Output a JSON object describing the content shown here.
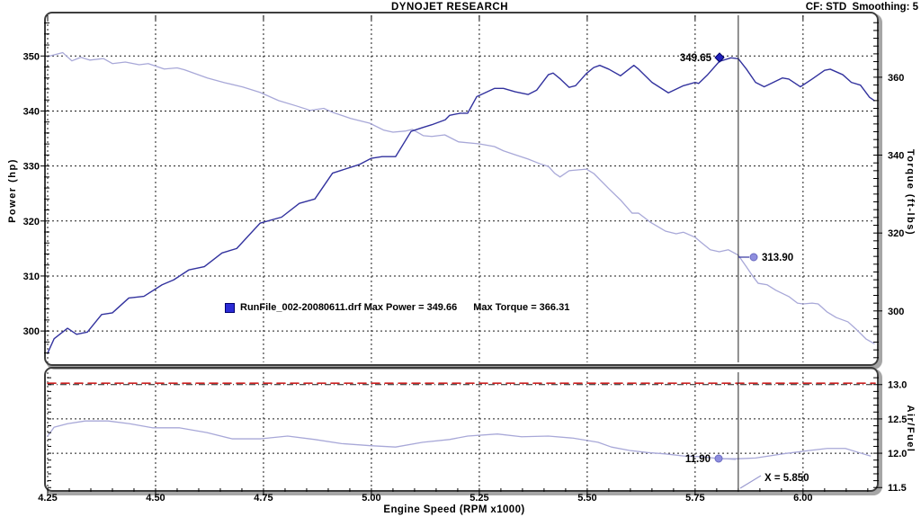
{
  "header": {
    "title": "DYNOJET RESEARCH",
    "settings": "CF: STD  Smoothing: 5"
  },
  "colors": {
    "power": "#32329e",
    "torque": "#a8a8d8",
    "afr": "#a8a8d8",
    "target": "#cc2222",
    "grid": "#1a1a1a",
    "cursor": "#222222",
    "marker_light": "#8e8ede",
    "marker_light_edge": "#6a6ac0",
    "marker_dark": "#2020bb",
    "legend_square": "#2b2bd6",
    "leader_light": "#9a9ad0"
  },
  "legend": {
    "file_power_label": "RunFile_002-20080611.drf Max Power = 349.66",
    "max_torque_label": "Max Torque = 366.31"
  },
  "cursor": {
    "x": 5.85,
    "label": "X = 5.850"
  },
  "axes_titles": {
    "power": "Power (hp)",
    "torque": "Torque (ft-lbs)",
    "afr": "Air/Fuel",
    "x": "Engine Speed (RPM x1000)"
  },
  "annotations": [
    {
      "id": "power-readout",
      "label": "349.65",
      "marker": "diamond",
      "px": [
        800,
        64
      ],
      "label_side": "left",
      "value": 349.65
    },
    {
      "id": "torque-readout",
      "label": "313.90",
      "marker": "circle",
      "px": [
        838,
        286
      ],
      "label_side": "right",
      "value": 313.9,
      "leader": [
        [
          821,
          286
        ],
        [
          833,
          286
        ]
      ],
      "leader_color_key": "power"
    },
    {
      "id": "afr-readout",
      "label": "11.90",
      "marker": "circle",
      "px": [
        799,
        510
      ],
      "label_side": "left",
      "value": 11.9,
      "leader": [
        [
          803,
          510
        ],
        [
          818,
          511
        ]
      ],
      "leader_color_key": "afr"
    },
    {
      "id": "cursor-x-label",
      "label": "X = 5.850",
      "marker": "none",
      "px": [
        850,
        535
      ],
      "label_side": "right",
      "leader": [
        [
          846,
          529
        ],
        [
          823,
          543
        ]
      ],
      "leader_color_key": "leader_light"
    }
  ],
  "chart_data": [
    {
      "type": "line",
      "panel": "main",
      "xlim": [
        4.25,
        6.167
      ],
      "xlabel": "Engine Speed (RPM x1000)",
      "x_ticks": [
        {
          "v": 4.25,
          "label": "4.25"
        },
        {
          "v": 4.5,
          "label": "4.50"
        },
        {
          "v": 4.75,
          "label": "4.75"
        },
        {
          "v": 5.0,
          "label": "5.00"
        },
        {
          "v": 5.25,
          "label": "5.25"
        },
        {
          "v": 5.5,
          "label": "5.50"
        },
        {
          "v": 5.75,
          "label": "5.75"
        },
        {
          "v": 6.0,
          "label": "6.00"
        }
      ],
      "x_minor_step": 0.05,
      "axes": {
        "power": {
          "label": "Power (hp)",
          "lim": [
            294.3,
            357.4
          ],
          "minor_step": 2,
          "minor_range": [
            296,
            356
          ],
          "ticks": [
            {
              "v": 300,
              "label": "300"
            },
            {
              "v": 310,
              "label": "310"
            },
            {
              "v": 320,
              "label": "320"
            },
            {
              "v": 330,
              "label": "330"
            },
            {
              "v": 340,
              "label": "340"
            },
            {
              "v": 350,
              "label": "350"
            }
          ]
        },
        "torque": {
          "label": "Torque (ft-lbs)",
          "lim": [
            286.8,
            375.9
          ],
          "minor_step": 2,
          "minor_range": [
            288,
            374
          ],
          "ticks": [
            {
              "v": 300,
              "label": "300"
            },
            {
              "v": 320,
              "label": "320"
            },
            {
              "v": 340,
              "label": "340"
            },
            {
              "v": 360,
              "label": "360"
            }
          ]
        }
      },
      "grid_on": true,
      "legend_position": "inside-bottom-left",
      "series": [
        {
          "name": "power",
          "axis": "power",
          "color_key": "power",
          "max": 349.66,
          "points": [
            [
              4.25,
              296.0
            ],
            [
              4.265,
              298.6
            ],
            [
              4.296,
              300.5
            ],
            [
              4.317,
              299.4
            ],
            [
              4.342,
              299.8
            ],
            [
              4.375,
              303.0
            ],
            [
              4.4,
              303.3
            ],
            [
              4.438,
              306.0
            ],
            [
              4.473,
              306.3
            ],
            [
              4.515,
              308.4
            ],
            [
              4.542,
              309.3
            ],
            [
              4.577,
              311.1
            ],
            [
              4.613,
              311.7
            ],
            [
              4.654,
              314.2
            ],
            [
              4.688,
              315.0
            ],
            [
              4.742,
              319.6
            ],
            [
              4.792,
              320.7
            ],
            [
              4.833,
              323.2
            ],
            [
              4.869,
              324.0
            ],
            [
              4.91,
              328.7
            ],
            [
              4.973,
              330.3
            ],
            [
              5.0,
              331.4
            ],
            [
              5.025,
              331.7
            ],
            [
              5.056,
              331.7
            ],
            [
              5.092,
              336.3
            ],
            [
              5.119,
              337.0
            ],
            [
              5.14,
              337.5
            ],
            [
              5.171,
              338.4
            ],
            [
              5.181,
              339.2
            ],
            [
              5.206,
              339.6
            ],
            [
              5.223,
              339.6
            ],
            [
              5.244,
              342.6
            ],
            [
              5.285,
              344.1
            ],
            [
              5.306,
              344.1
            ],
            [
              5.333,
              343.5
            ],
            [
              5.363,
              343.0
            ],
            [
              5.383,
              343.8
            ],
            [
              5.41,
              346.6
            ],
            [
              5.421,
              346.9
            ],
            [
              5.438,
              345.8
            ],
            [
              5.458,
              344.3
            ],
            [
              5.473,
              344.6
            ],
            [
              5.498,
              346.8
            ],
            [
              5.515,
              347.9
            ],
            [
              5.529,
              348.3
            ],
            [
              5.55,
              347.6
            ],
            [
              5.577,
              346.4
            ],
            [
              5.608,
              348.3
            ],
            [
              5.619,
              347.6
            ],
            [
              5.65,
              345.2
            ],
            [
              5.688,
              343.3
            ],
            [
              5.723,
              344.6
            ],
            [
              5.75,
              345.2
            ],
            [
              5.758,
              345.0
            ],
            [
              5.779,
              346.6
            ],
            [
              5.806,
              349.0
            ],
            [
              5.833,
              349.66
            ],
            [
              5.85,
              349.5
            ],
            [
              5.869,
              347.6
            ],
            [
              5.89,
              345.2
            ],
            [
              5.91,
              344.4
            ],
            [
              5.931,
              345.2
            ],
            [
              5.952,
              346.0
            ],
            [
              5.967,
              345.8
            ],
            [
              5.994,
              344.4
            ],
            [
              6.021,
              345.8
            ],
            [
              6.05,
              347.4
            ],
            [
              6.063,
              347.6
            ],
            [
              6.092,
              346.6
            ],
            [
              6.112,
              345.2
            ],
            [
              6.133,
              344.7
            ],
            [
              6.154,
              342.5
            ],
            [
              6.165,
              341.9
            ]
          ]
        },
        {
          "name": "torque",
          "axis": "torque",
          "color_key": "torque",
          "max": 366.31,
          "points": [
            [
              4.25,
              365.3
            ],
            [
              4.285,
              366.31
            ],
            [
              4.306,
              364.2
            ],
            [
              4.327,
              365.1
            ],
            [
              4.348,
              364.4
            ],
            [
              4.379,
              364.8
            ],
            [
              4.4,
              363.5
            ],
            [
              4.43,
              363.9
            ],
            [
              4.462,
              363.2
            ],
            [
              4.483,
              363.5
            ],
            [
              4.52,
              362.1
            ],
            [
              4.55,
              362.4
            ],
            [
              4.567,
              361.9
            ],
            [
              4.62,
              359.8
            ],
            [
              4.66,
              358.6
            ],
            [
              4.702,
              357.5
            ],
            [
              4.742,
              356.1
            ],
            [
              4.785,
              354.0
            ],
            [
              4.827,
              352.6
            ],
            [
              4.858,
              351.5
            ],
            [
              4.89,
              352.0
            ],
            [
              4.91,
              351.0
            ],
            [
              4.952,
              349.4
            ],
            [
              4.996,
              348.2
            ],
            [
              5.029,
              346.4
            ],
            [
              5.05,
              345.9
            ],
            [
              5.08,
              346.2
            ],
            [
              5.095,
              346.6
            ],
            [
              5.12,
              345.0
            ],
            [
              5.14,
              344.8
            ],
            [
              5.17,
              345.2
            ],
            [
              5.202,
              343.4
            ],
            [
              5.25,
              342.9
            ],
            [
              5.285,
              342.2
            ],
            [
              5.306,
              341.1
            ],
            [
              5.333,
              340.1
            ],
            [
              5.363,
              339.0
            ],
            [
              5.39,
              337.8
            ],
            [
              5.41,
              337.1
            ],
            [
              5.425,
              335.3
            ],
            [
              5.437,
              334.4
            ],
            [
              5.458,
              336.0
            ],
            [
              5.498,
              336.4
            ],
            [
              5.515,
              335.3
            ],
            [
              5.55,
              331.4
            ],
            [
              5.577,
              328.5
            ],
            [
              5.604,
              325.1
            ],
            [
              5.619,
              325.1
            ],
            [
              5.646,
              322.8
            ],
            [
              5.681,
              320.5
            ],
            [
              5.706,
              319.8
            ],
            [
              5.723,
              320.2
            ],
            [
              5.75,
              318.9
            ],
            [
              5.765,
              317.5
            ],
            [
              5.785,
              315.7
            ],
            [
              5.806,
              315.2
            ],
            [
              5.827,
              315.7
            ],
            [
              5.85,
              314.3
            ],
            [
              5.869,
              311.3
            ],
            [
              5.883,
              309.0
            ],
            [
              5.896,
              307.1
            ],
            [
              5.917,
              306.7
            ],
            [
              5.937,
              305.3
            ],
            [
              5.967,
              303.7
            ],
            [
              5.987,
              302.0
            ],
            [
              6.0,
              301.8
            ],
            [
              6.021,
              302.0
            ],
            [
              6.035,
              301.8
            ],
            [
              6.056,
              299.7
            ],
            [
              6.077,
              298.3
            ],
            [
              6.104,
              297.2
            ],
            [
              6.125,
              295.1
            ],
            [
              6.146,
              292.8
            ],
            [
              6.165,
              291.6
            ]
          ]
        }
      ]
    },
    {
      "type": "line",
      "panel": "afr",
      "xlim": [
        4.25,
        6.167
      ],
      "axes": {
        "afr": {
          "label": "Air/Fuel",
          "lim": [
            11.49,
            13.18
          ],
          "minor_step": 0.1,
          "minor_range": [
            11.5,
            13.1
          ],
          "ticks": [
            {
              "v": 11.5,
              "label": "11.5"
            },
            {
              "v": 12.0,
              "label": "12.0"
            },
            {
              "v": 12.5,
              "label": "12.5"
            },
            {
              "v": 13.0,
              "label": "13.0"
            }
          ]
        }
      },
      "gridlines_dashed": [
        12.0,
        12.5
      ],
      "gridline_dashdot": 13.0,
      "series": [
        {
          "name": "airfuel",
          "axis": "afr",
          "color_key": "afr",
          "points": [
            [
              4.25,
              12.25
            ],
            [
              4.265,
              12.38
            ],
            [
              4.296,
              12.43
            ],
            [
              4.337,
              12.47
            ],
            [
              4.39,
              12.47
            ],
            [
              4.44,
              12.43
            ],
            [
              4.494,
              12.37
            ],
            [
              4.556,
              12.37
            ],
            [
              4.619,
              12.3
            ],
            [
              4.677,
              12.21
            ],
            [
              4.744,
              12.21
            ],
            [
              4.806,
              12.25
            ],
            [
              4.869,
              12.2
            ],
            [
              4.931,
              12.14
            ],
            [
              4.998,
              12.11
            ],
            [
              5.056,
              12.09
            ],
            [
              5.119,
              12.16
            ],
            [
              5.181,
              12.2
            ],
            [
              5.223,
              12.25
            ],
            [
              5.292,
              12.28
            ],
            [
              5.348,
              12.24
            ],
            [
              5.41,
              12.25
            ],
            [
              5.467,
              12.22
            ],
            [
              5.525,
              12.16
            ],
            [
              5.556,
              12.09
            ],
            [
              5.598,
              12.04
            ],
            [
              5.64,
              12.01
            ],
            [
              5.681,
              11.99
            ],
            [
              5.723,
              11.96
            ],
            [
              5.765,
              11.95
            ],
            [
              5.806,
              11.92
            ],
            [
              5.85,
              11.92
            ],
            [
              5.89,
              11.93
            ],
            [
              5.952,
              11.99
            ],
            [
              6.015,
              12.04
            ],
            [
              6.056,
              12.07
            ],
            [
              6.098,
              12.07
            ],
            [
              6.129,
              12.01
            ],
            [
              6.156,
              11.96
            ]
          ]
        },
        {
          "name": "afr-target",
          "axis": "afr",
          "color_key": "target",
          "style": "dashed-red",
          "points": [
            [
              4.25,
              13.02
            ],
            [
              6.167,
              13.02
            ]
          ]
        }
      ]
    }
  ]
}
